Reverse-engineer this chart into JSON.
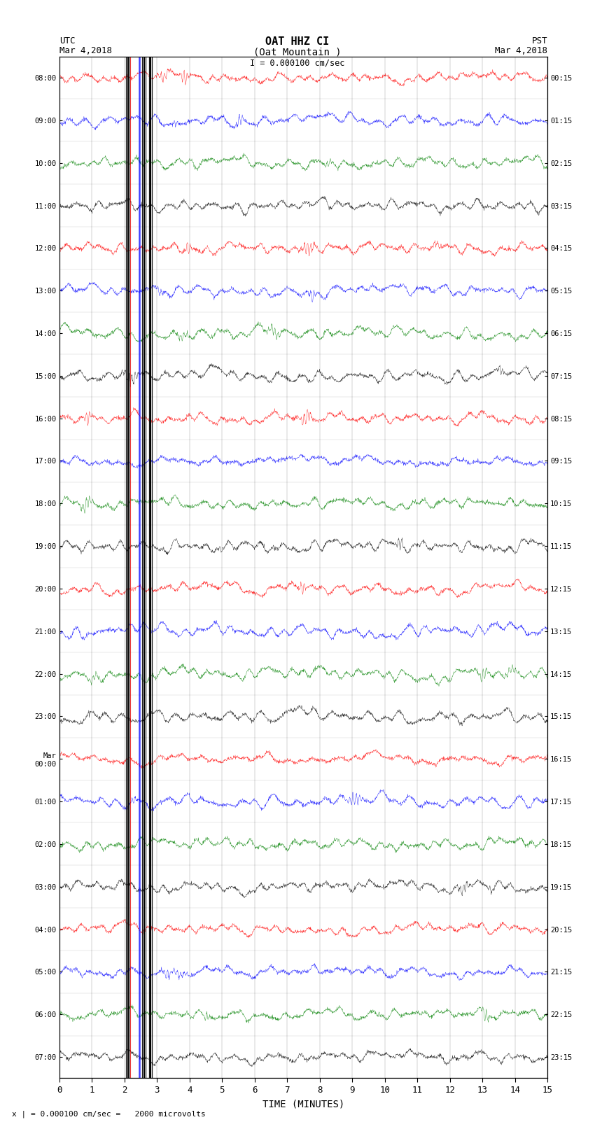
{
  "title_line1": "OAT HHZ CI",
  "title_line2": "(Oat Mountain )",
  "scale_label": "I = 0.000100 cm/sec",
  "bottom_label": "TIME (MINUTES)",
  "bottom_note": "x | = 0.000100 cm/sec =   2000 microvolts",
  "left_times_utc": [
    "08:00",
    "09:00",
    "10:00",
    "11:00",
    "12:00",
    "13:00",
    "14:00",
    "15:00",
    "16:00",
    "17:00",
    "18:00",
    "19:00",
    "20:00",
    "21:00",
    "22:00",
    "23:00",
    "Mar\n00:00",
    "01:00",
    "02:00",
    "03:00",
    "04:00",
    "05:00",
    "06:00",
    "07:00"
  ],
  "right_times_pst": [
    "00:15",
    "01:15",
    "02:15",
    "03:15",
    "04:15",
    "05:15",
    "06:15",
    "07:15",
    "08:15",
    "09:15",
    "10:15",
    "11:15",
    "12:15",
    "13:15",
    "14:15",
    "15:15",
    "16:15",
    "17:15",
    "18:15",
    "19:15",
    "20:15",
    "21:15",
    "22:15",
    "23:15"
  ],
  "n_rows": 24,
  "n_cols": 1800,
  "x_ticks": [
    0,
    1,
    2,
    3,
    4,
    5,
    6,
    7,
    8,
    9,
    10,
    11,
    12,
    13,
    14,
    15
  ],
  "colors": [
    "red",
    "blue",
    "green",
    "black"
  ],
  "bg_color": "white",
  "fig_width": 8.5,
  "fig_height": 16.13,
  "dpi": 100,
  "amplitude": 0.38
}
